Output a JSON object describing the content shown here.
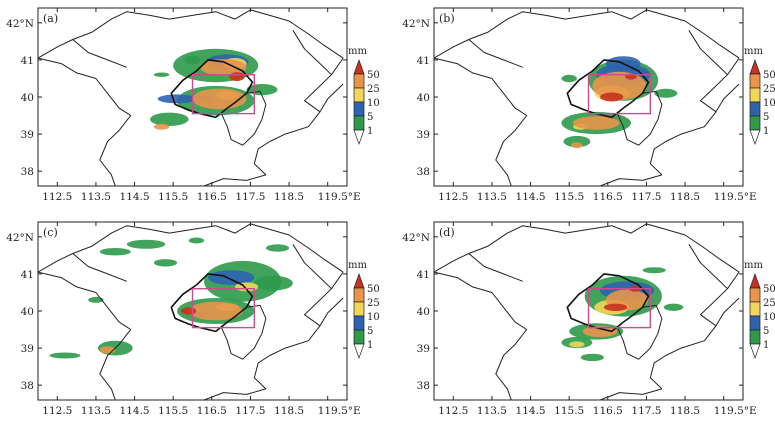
{
  "panels": [
    {
      "id": "a",
      "label": "(a)"
    },
    {
      "id": "b",
      "label": "(b)"
    },
    {
      "id": "c",
      "label": "(c)"
    },
    {
      "id": "d",
      "label": "(d)"
    }
  ],
  "axes": {
    "x_ticks": [
      "112.5",
      "113.5",
      "114.5",
      "115.5",
      "116.5",
      "117.5",
      "118.5",
      "119.5°E"
    ],
    "y_ticks": [
      "42°N",
      "41",
      "40",
      "39",
      "38"
    ],
    "x_range": [
      112.0,
      120.0
    ],
    "y_range": [
      37.6,
      42.4
    ]
  },
  "colorbar": {
    "unit": "mm",
    "levels": [
      "50",
      "25",
      "10",
      "5",
      "1"
    ],
    "colors": {
      "above_50": "#c8321e",
      "25_50": "#e8954a",
      "10_25": "#f2d65a",
      "5_10": "#2f63b0",
      "1_5": "#2e9a4a",
      "below_1": "#ffffff"
    }
  },
  "study_box": {
    "lon": [
      116.0,
      117.6
    ],
    "lat": [
      39.55,
      40.6
    ],
    "color": "#d04a8e"
  }
}
